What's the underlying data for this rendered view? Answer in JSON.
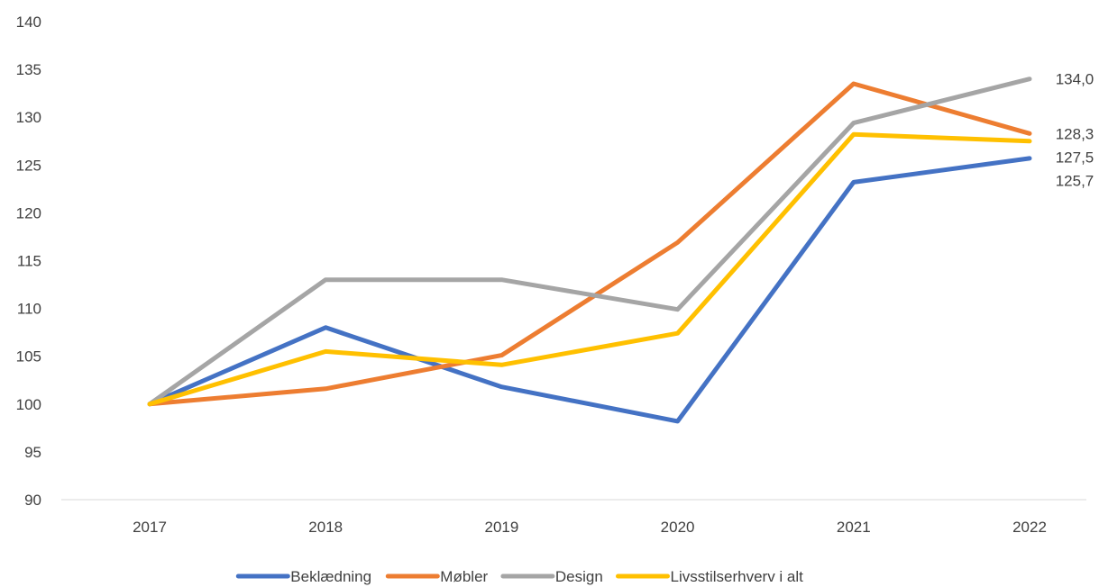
{
  "chart_data": {
    "type": "line",
    "title": "",
    "xlabel": "",
    "ylabel": "",
    "categories": [
      "2017",
      "2018",
      "2019",
      "2020",
      "2021",
      "2022"
    ],
    "ylim": [
      90,
      140
    ],
    "yticks": [
      90,
      95,
      100,
      105,
      110,
      115,
      120,
      125,
      130,
      135,
      140
    ],
    "ytick_labels": [
      "90",
      "95",
      "100",
      "105",
      "110",
      "115",
      "120",
      "125",
      "130",
      "135",
      "140"
    ],
    "grid": false,
    "legend_position": "bottom",
    "series": [
      {
        "name": "Beklædning",
        "color": "#4472C4",
        "values": [
          100,
          108.0,
          101.8,
          98.2,
          123.2,
          125.7
        ],
        "end_label": "125,7"
      },
      {
        "name": "Møbler",
        "color": "#ED7D31",
        "values": [
          100,
          101.6,
          105.1,
          116.9,
          133.5,
          128.3
        ],
        "end_label": "128,3"
      },
      {
        "name": "Design",
        "color": "#A5A5A5",
        "values": [
          100,
          113.0,
          113.0,
          109.9,
          129.4,
          134.0
        ],
        "end_label": "134,0"
      },
      {
        "name": "Livsstilserhverv i alt",
        "color": "#FFC000",
        "values": [
          100,
          105.5,
          104.1,
          107.4,
          128.2,
          127.5
        ],
        "end_label": "127,5"
      }
    ]
  }
}
